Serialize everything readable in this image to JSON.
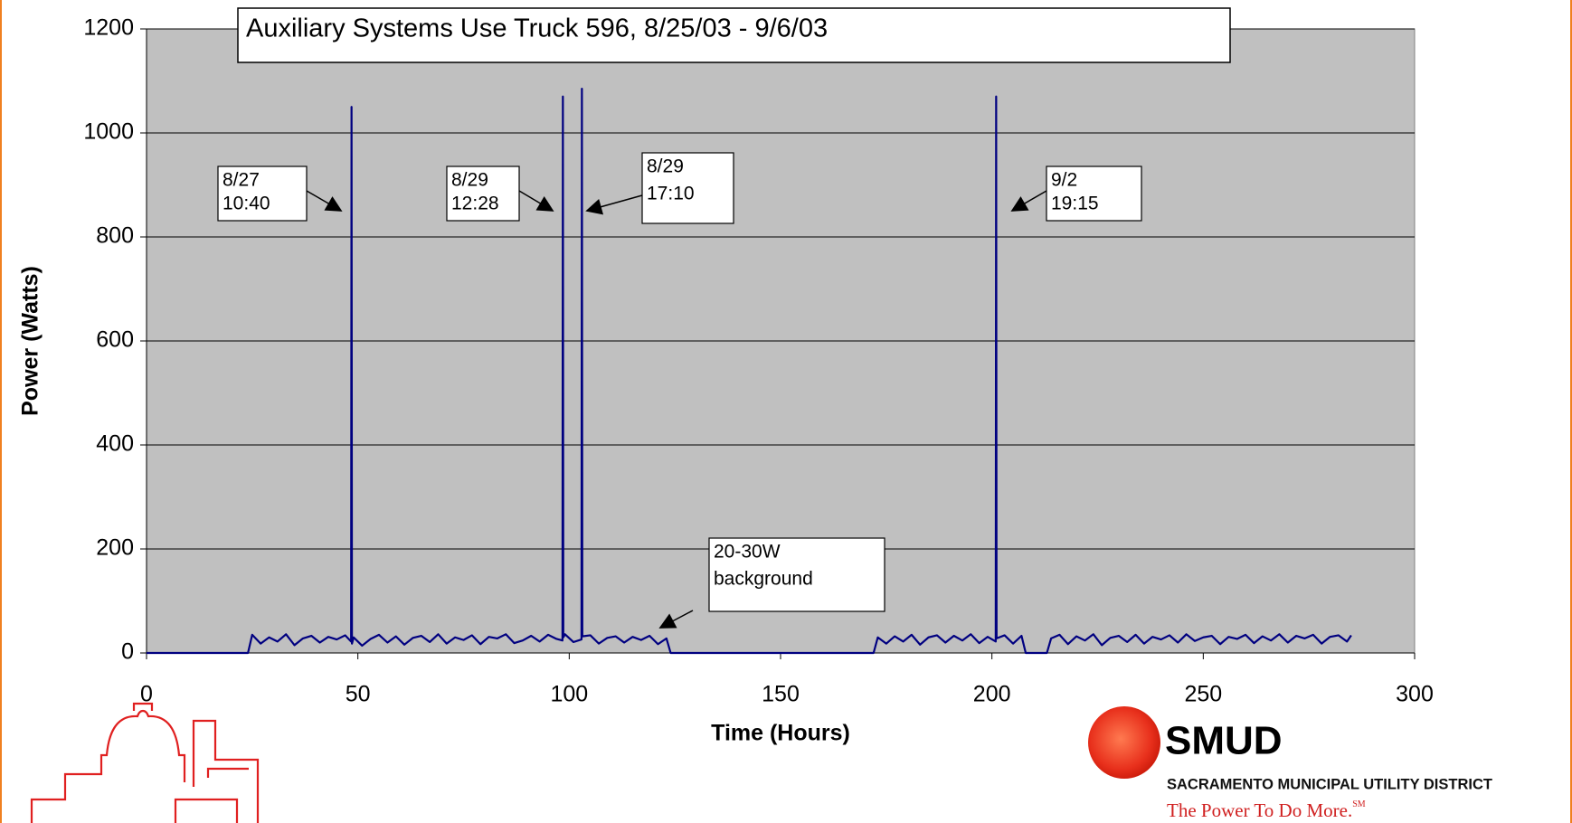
{
  "chart_data": {
    "type": "line",
    "title": "Auxiliary Systems Use Truck 596, 8/25/03 - 9/6/03",
    "x_label": "Time (Hours)",
    "y_label": "Power (Watts)",
    "color": "#000080",
    "x": [
      0,
      24,
      25,
      27,
      29,
      31,
      33,
      35,
      37,
      39,
      41,
      43,
      45,
      47,
      48.4,
      48.5,
      48.6,
      49,
      51,
      53,
      55,
      57,
      59,
      61,
      63,
      65,
      67,
      69,
      71,
      73,
      75,
      77,
      79,
      81,
      83,
      85,
      87,
      89,
      91,
      93,
      95,
      97,
      98.4,
      98.5,
      98.6,
      99,
      101,
      102.9,
      103,
      103.1,
      105,
      107,
      109,
      111,
      113,
      115,
      117,
      119,
      121,
      123,
      124,
      172,
      173,
      175,
      177,
      179,
      181,
      183,
      185,
      187,
      189,
      191,
      193,
      195,
      197,
      199,
      200.9,
      201,
      201.1,
      203,
      205,
      207,
      208,
      213,
      214,
      216,
      218,
      220,
      222,
      224,
      226,
      228,
      230,
      232,
      234,
      236,
      238,
      240,
      242,
      244,
      246,
      248,
      250,
      252,
      254,
      256,
      258,
      260,
      262,
      264,
      266,
      268,
      270,
      272,
      274,
      276,
      278,
      280,
      282,
      284,
      285
    ],
    "values": [
      0,
      0,
      35,
      18,
      30,
      22,
      36,
      15,
      28,
      33,
      20,
      31,
      26,
      34,
      22,
      1050,
      18,
      30,
      14,
      27,
      35,
      20,
      32,
      16,
      29,
      33,
      21,
      36,
      18,
      30,
      25,
      34,
      17,
      31,
      28,
      36,
      19,
      24,
      33,
      22,
      35,
      27,
      24,
      1070,
      30,
      36,
      21,
      26,
      1085,
      32,
      34,
      18,
      29,
      32,
      20,
      31,
      25,
      33,
      17,
      28,
      0,
      0,
      30,
      18,
      32,
      22,
      35,
      16,
      30,
      34,
      20,
      33,
      24,
      36,
      19,
      31,
      22,
      1070,
      28,
      34,
      18,
      33,
      0,
      0,
      28,
      35,
      17,
      32,
      24,
      36,
      15,
      29,
      33,
      21,
      35,
      18,
      31,
      26,
      34,
      20,
      36,
      23,
      30,
      33,
      17,
      31,
      27,
      35,
      19,
      32,
      24,
      36,
      20,
      33,
      28,
      35,
      18,
      31,
      34,
      22,
      34
    ],
    "xlim": [
      0,
      300
    ],
    "xticks": [
      0,
      50,
      100,
      150,
      200,
      250,
      300
    ],
    "ylim": [
      0,
      1200
    ],
    "yticks": [
      0,
      200,
      400,
      600,
      800,
      1000,
      1200
    ],
    "grid": true,
    "annotations": [
      {
        "lines": [
          "8/27",
          "10:40"
        ]
      },
      {
        "lines": [
          "8/29",
          "12:28"
        ]
      },
      {
        "lines": [
          "8/29",
          "17:10"
        ]
      },
      {
        "lines": [
          "9/2",
          "19:15"
        ]
      },
      {
        "lines": [
          "20-30W",
          "background"
        ]
      }
    ]
  },
  "logo": {
    "name": "SMUD",
    "full_name": "SACRAMENTO MUNICIPAL UTILITY DISTRICT",
    "slogan": "The Power To Do More.",
    "mark": "SM"
  }
}
